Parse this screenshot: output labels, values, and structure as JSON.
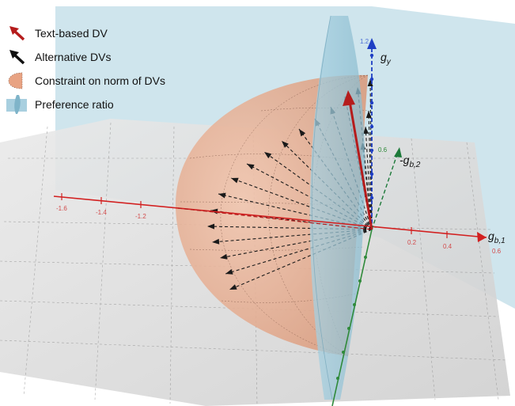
{
  "legend": [
    {
      "icon": "red-arrow-icon",
      "label": "Text-based DV"
    },
    {
      "icon": "black-arrow-icon",
      "label": "Alternative DVs"
    },
    {
      "icon": "hemisphere-icon",
      "label": "Constraint on norm of DVs"
    },
    {
      "icon": "blue-cone-icon",
      "label": "Preference ratio"
    }
  ],
  "axes": {
    "gy": {
      "base": "g",
      "sub": "y"
    },
    "gb1": {
      "base": "g",
      "sub": "b,1"
    },
    "gb2": {
      "base": "-g",
      "sub": "b,2"
    }
  },
  "ticks": {
    "x_axis": [
      "-1.6",
      "-1.4",
      "-1.2",
      "0.2",
      "0.4",
      "0.6"
    ],
    "y_axis": [
      "1.2"
    ],
    "b2_axis": [
      "0.6"
    ]
  },
  "colors": {
    "text_dv": "#b51c1c",
    "alt_dv": "#1a1a1a",
    "constraint": "#e8a383",
    "preference": "#9cc6d8",
    "x_axis": "#d21f1f",
    "y_axis": "#1f3fc4",
    "b2_axis": "#1d7a3a"
  }
}
